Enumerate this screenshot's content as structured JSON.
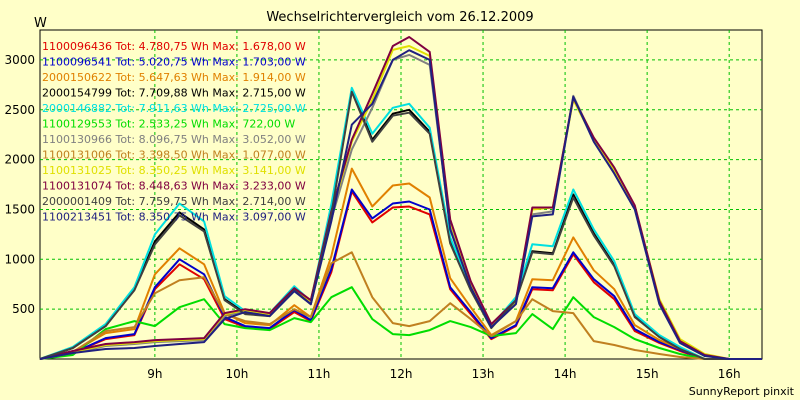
{
  "chart_data": {
    "type": "line",
    "title": "Wechselrichtervergleich vom 26.12.2009",
    "ylabel": "W",
    "footer": "SunnyReport pinxit",
    "x_ticks": [
      "9h",
      "10h",
      "11h",
      "12h",
      "13h",
      "14h",
      "15h",
      "16h"
    ],
    "y_ticks": [
      "500",
      "1000",
      "1500",
      "2000",
      "2500",
      "3000"
    ],
    "xlim": [
      7.6,
      16.4
    ],
    "ylim": [
      0,
      3300
    ],
    "grid": true,
    "legend_position": "top-left inside",
    "x": [
      7.6,
      8.0,
      8.4,
      8.75,
      9.0,
      9.3,
      9.6,
      9.85,
      10.1,
      10.4,
      10.7,
      10.9,
      11.15,
      11.4,
      11.65,
      11.9,
      12.1,
      12.35,
      12.6,
      12.85,
      13.1,
      13.4,
      13.6,
      13.85,
      14.1,
      14.35,
      14.6,
      14.85,
      15.15,
      15.4,
      15.7,
      16.0,
      16.4
    ],
    "series": [
      {
        "name": "1100096436 Tot: 4.780,75 Wh Max: 1.678,00 W",
        "color": "#e00000",
        "values": [
          0,
          60,
          200,
          240,
          700,
          950,
          800,
          400,
          320,
          300,
          470,
          380,
          870,
          1680,
          1370,
          1520,
          1530,
          1450,
          700,
          450,
          200,
          330,
          700,
          690,
          1050,
          770,
          600,
          280,
          160,
          80,
          0,
          0,
          0
        ]
      },
      {
        "name": "1100096541 Tot: 5.020,75 Wh Max: 1.703,00 W",
        "color": "#0000cc",
        "values": [
          0,
          60,
          210,
          250,
          720,
          1000,
          850,
          420,
          330,
          310,
          490,
          390,
          900,
          1700,
          1410,
          1560,
          1580,
          1500,
          720,
          470,
          210,
          340,
          720,
          710,
          1070,
          800,
          630,
          300,
          170,
          90,
          0,
          0,
          0
        ]
      },
      {
        "name": "2000150622 Tot: 5.647,63 Wh Max: 1.914,00 W",
        "color": "#e08000",
        "values": [
          0,
          70,
          260,
          300,
          850,
          1110,
          950,
          460,
          360,
          340,
          540,
          420,
          1030,
          1910,
          1530,
          1740,
          1760,
          1620,
          810,
          520,
          240,
          380,
          800,
          790,
          1220,
          890,
          700,
          340,
          190,
          100,
          0,
          0,
          0
        ]
      },
      {
        "name": "2000154799 Tot: 7.709,88 Wh Max: 2.715,00 W",
        "color": "#000000",
        "values": [
          0,
          110,
          330,
          700,
          1180,
          1470,
          1300,
          600,
          460,
          440,
          700,
          560,
          1480,
          2700,
          2200,
          2460,
          2500,
          2280,
          1180,
          700,
          320,
          600,
          1080,
          1060,
          1650,
          1260,
          940,
          430,
          230,
          110,
          0,
          0,
          0
        ]
      },
      {
        "name": "2000146882 Tot: 7.911,63 Wh Max: 2.725,00 W",
        "color": "#00e0e0",
        "values": [
          0,
          120,
          350,
          720,
          1250,
          1560,
          1380,
          630,
          480,
          460,
          730,
          580,
          1550,
          2720,
          2260,
          2520,
          2560,
          2320,
          1220,
          720,
          330,
          620,
          1150,
          1130,
          1700,
          1300,
          980,
          450,
          240,
          120,
          0,
          0,
          0
        ]
      },
      {
        "name": "1100129553 Tot: 2.533,25 Wh Max: 722,00 W",
        "color": "#00dd00",
        "values": [
          0,
          40,
          300,
          380,
          330,
          520,
          600,
          350,
          310,
          290,
          410,
          370,
          620,
          720,
          400,
          250,
          240,
          290,
          380,
          320,
          230,
          260,
          450,
          300,
          620,
          420,
          320,
          200,
          110,
          50,
          0,
          0,
          0
        ]
      },
      {
        "name": "1100130966 Tot: 8.096,75 Wh Max: 3.052,00 W",
        "color": "#808080",
        "values": [
          0,
          60,
          130,
          150,
          170,
          180,
          190,
          430,
          480,
          440,
          690,
          560,
          1400,
          2100,
          2520,
          3000,
          3050,
          2950,
          1320,
          740,
          330,
          560,
          1450,
          1480,
          2640,
          2200,
          1880,
          1520,
          560,
          170,
          40,
          0,
          0
        ]
      },
      {
        "name": "1100131006 Tot: 3.398,50 Wh Max: 1.077,00 W",
        "color": "#c08020",
        "values": [
          0,
          70,
          280,
          320,
          660,
          790,
          820,
          450,
          380,
          350,
          500,
          420,
          960,
          1070,
          620,
          360,
          330,
          380,
          560,
          400,
          230,
          380,
          600,
          480,
          460,
          180,
          140,
          90,
          50,
          20,
          0,
          0,
          0
        ]
      },
      {
        "name": "1100131025 Tot: 8.350,25 Wh Max: 3.141,00 W",
        "color": "#e0e000",
        "values": [
          0,
          70,
          140,
          160,
          180,
          190,
          200,
          450,
          490,
          450,
          700,
          580,
          1450,
          2180,
          2600,
          3100,
          3140,
          3040,
          1380,
          770,
          340,
          580,
          1500,
          1520,
          2600,
          2200,
          1900,
          1520,
          600,
          200,
          50,
          0,
          0
        ]
      },
      {
        "name": "1100131074 Tot: 8.448,63 Wh Max: 3.233,00 W",
        "color": "#800040",
        "values": [
          0,
          80,
          150,
          170,
          190,
          200,
          210,
          460,
          500,
          460,
          710,
          590,
          1480,
          2200,
          2660,
          3140,
          3230,
          3080,
          1400,
          780,
          350,
          590,
          1520,
          1520,
          2620,
          2220,
          1920,
          1540,
          580,
          180,
          40,
          0,
          0
        ]
      },
      {
        "name": "2000001409 Tot: 7.759,75 Wh Max: 2.714,00 W",
        "color": "#404040",
        "values": [
          0,
          110,
          330,
          690,
          1150,
          1440,
          1280,
          590,
          450,
          430,
          690,
          550,
          1450,
          2680,
          2180,
          2440,
          2470,
          2260,
          1160,
          690,
          310,
          590,
          1070,
          1050,
          1620,
          1240,
          930,
          420,
          220,
          100,
          0,
          0,
          0
        ]
      },
      {
        "name": "1100213451 Tot: 8.350,75 Wh Max: 3.097,00 W",
        "color": "#202080",
        "values": [
          0,
          60,
          100,
          110,
          130,
          150,
          170,
          400,
          470,
          430,
          680,
          550,
          1380,
          2350,
          2560,
          3000,
          3097,
          3000,
          1300,
          720,
          320,
          550,
          1430,
          1450,
          2630,
          2180,
          1860,
          1500,
          550,
          160,
          30,
          0,
          0
        ]
      }
    ]
  }
}
